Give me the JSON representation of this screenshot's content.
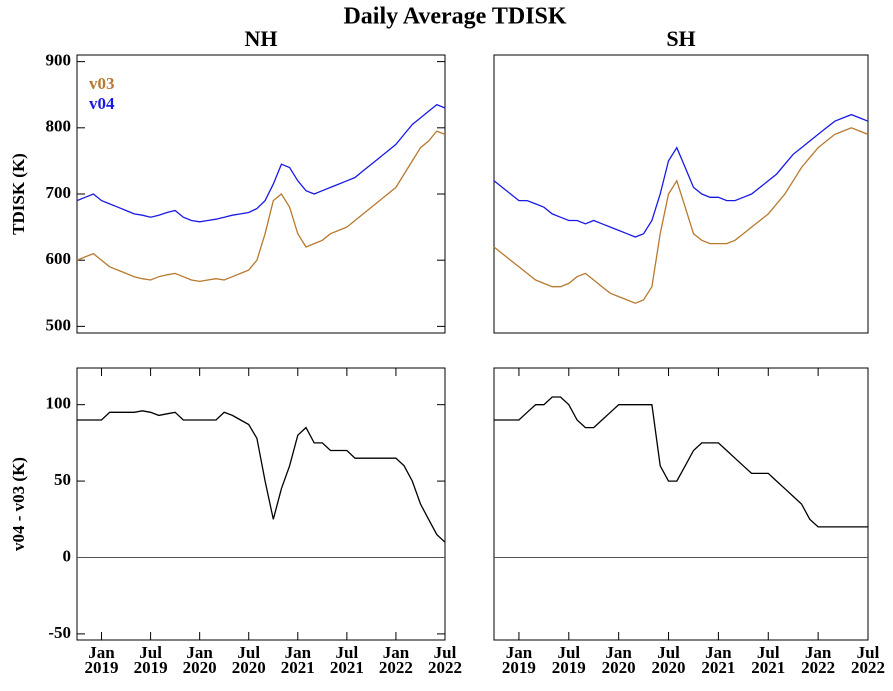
{
  "title": "Daily Average TDISK",
  "chart_data": [
    {
      "type": "line",
      "title": "NH",
      "ylabel": "TDISK (K)",
      "legend": "upper left",
      "x": [
        "2018-10",
        "2018-11",
        "2018-12",
        "2019-01",
        "2019-02",
        "2019-03",
        "2019-04",
        "2019-05",
        "2019-06",
        "2019-07",
        "2019-08",
        "2019-09",
        "2019-10",
        "2019-11",
        "2019-12",
        "2020-01",
        "2020-02",
        "2020-03",
        "2020-04",
        "2020-05",
        "2020-06",
        "2020-07",
        "2020-08",
        "2020-09",
        "2020-10",
        "2020-11",
        "2020-12",
        "2021-01",
        "2021-02",
        "2021-03",
        "2021-04",
        "2021-05",
        "2021-06",
        "2021-07",
        "2021-08",
        "2021-09",
        "2021-10",
        "2021-11",
        "2021-12",
        "2022-01",
        "2022-02",
        "2022-03",
        "2022-04",
        "2022-05",
        "2022-06",
        "2022-07"
      ],
      "xlim": [
        "2018-10",
        "2022-07"
      ],
      "ylim": [
        490,
        910
      ],
      "yticks": [
        500,
        600,
        700,
        800,
        900
      ],
      "series": [
        {
          "name": "v03",
          "color": "#b8792e",
          "values": [
            600,
            605,
            610,
            600,
            590,
            585,
            580,
            575,
            572,
            570,
            575,
            578,
            580,
            575,
            570,
            568,
            570,
            572,
            570,
            575,
            580,
            585,
            600,
            640,
            690,
            700,
            680,
            640,
            620,
            625,
            630,
            640,
            645,
            650,
            660,
            670,
            680,
            690,
            700,
            710,
            730,
            750,
            770,
            780,
            795,
            790
          ]
        },
        {
          "name": "v04",
          "color": "#1a1ae6",
          "values": [
            690,
            695,
            700,
            690,
            685,
            680,
            675,
            670,
            668,
            665,
            668,
            672,
            675,
            665,
            660,
            658,
            660,
            662,
            665,
            668,
            670,
            672,
            678,
            690,
            715,
            745,
            740,
            720,
            705,
            700,
            705,
            710,
            715,
            720,
            725,
            735,
            745,
            755,
            765,
            775,
            790,
            805,
            815,
            825,
            835,
            830
          ]
        }
      ]
    },
    {
      "type": "line",
      "title": "SH",
      "x": [
        "2018-10",
        "2018-11",
        "2018-12",
        "2019-01",
        "2019-02",
        "2019-03",
        "2019-04",
        "2019-05",
        "2019-06",
        "2019-07",
        "2019-08",
        "2019-09",
        "2019-10",
        "2019-11",
        "2019-12",
        "2020-01",
        "2020-02",
        "2020-03",
        "2020-04",
        "2020-05",
        "2020-06",
        "2020-07",
        "2020-08",
        "2020-09",
        "2020-10",
        "2020-11",
        "2020-12",
        "2021-01",
        "2021-02",
        "2021-03",
        "2021-04",
        "2021-05",
        "2021-06",
        "2021-07",
        "2021-08",
        "2021-09",
        "2021-10",
        "2021-11",
        "2021-12",
        "2022-01",
        "2022-02",
        "2022-03",
        "2022-04",
        "2022-05",
        "2022-06",
        "2022-07"
      ],
      "xlim": [
        "2018-10",
        "2022-07"
      ],
      "ylim": [
        490,
        910
      ],
      "series": [
        {
          "color": "#b8792e",
          "values": [
            620,
            610,
            600,
            590,
            580,
            570,
            565,
            560,
            560,
            565,
            575,
            580,
            570,
            560,
            550,
            545,
            540,
            535,
            540,
            560,
            640,
            700,
            720,
            680,
            640,
            630,
            625,
            625,
            625,
            630,
            640,
            650,
            660,
            670,
            685,
            700,
            720,
            740,
            755,
            770,
            780,
            790,
            795,
            800,
            795,
            790
          ]
        },
        {
          "color": "#1a1ae6",
          "values": [
            720,
            710,
            700,
            690,
            690,
            685,
            680,
            670,
            665,
            660,
            660,
            655,
            660,
            655,
            650,
            645,
            640,
            635,
            640,
            660,
            700,
            750,
            770,
            740,
            710,
            700,
            695,
            695,
            690,
            690,
            695,
            700,
            710,
            720,
            730,
            745,
            760,
            770,
            780,
            790,
            800,
            810,
            815,
            820,
            815,
            810
          ]
        }
      ]
    },
    {
      "type": "line",
      "ylabel": "v04 - v03 (K)",
      "color": "#000000",
      "hline": 0,
      "x": [
        "2018-10",
        "2018-11",
        "2018-12",
        "2019-01",
        "2019-02",
        "2019-03",
        "2019-04",
        "2019-05",
        "2019-06",
        "2019-07",
        "2019-08",
        "2019-09",
        "2019-10",
        "2019-11",
        "2019-12",
        "2020-01",
        "2020-02",
        "2020-03",
        "2020-04",
        "2020-05",
        "2020-06",
        "2020-07",
        "2020-08",
        "2020-09",
        "2020-10",
        "2020-11",
        "2020-12",
        "2021-01",
        "2021-02",
        "2021-03",
        "2021-04",
        "2021-05",
        "2021-06",
        "2021-07",
        "2021-08",
        "2021-09",
        "2021-10",
        "2021-11",
        "2021-12",
        "2022-01",
        "2022-02",
        "2022-03",
        "2022-04",
        "2022-05",
        "2022-06",
        "2022-07"
      ],
      "xlim": [
        "2018-10",
        "2022-07"
      ],
      "ylim": [
        -54,
        124
      ],
      "yticks": [
        -50,
        0,
        50,
        100
      ],
      "xticks": [
        {
          "value": "2019-01",
          "label": [
            "Jan",
            "2019"
          ]
        },
        {
          "value": "2019-07",
          "label": [
            "Jul",
            "2019"
          ]
        },
        {
          "value": "2020-01",
          "label": [
            "Jan",
            "2020"
          ]
        },
        {
          "value": "2020-07",
          "label": [
            "Jul",
            "2020"
          ]
        },
        {
          "value": "2021-01",
          "label": [
            "Jan",
            "2021"
          ]
        },
        {
          "value": "2021-07",
          "label": [
            "Jul",
            "2021"
          ]
        },
        {
          "value": "2022-01",
          "label": [
            "Jan",
            "2022"
          ]
        },
        {
          "value": "2022-07",
          "label": [
            "Jul",
            "2022"
          ]
        }
      ],
      "values": [
        90,
        90,
        90,
        90,
        95,
        95,
        95,
        95,
        96,
        95,
        93,
        94,
        95,
        90,
        90,
        90,
        90,
        90,
        95,
        93,
        90,
        87,
        78,
        50,
        25,
        45,
        60,
        80,
        85,
        75,
        75,
        70,
        70,
        70,
        65,
        65,
        65,
        65,
        65,
        65,
        60,
        50,
        35,
        25,
        15,
        10
      ]
    },
    {
      "type": "line",
      "color": "#000000",
      "hline": 0,
      "x": [
        "2018-10",
        "2018-11",
        "2018-12",
        "2019-01",
        "2019-02",
        "2019-03",
        "2019-04",
        "2019-05",
        "2019-06",
        "2019-07",
        "2019-08",
        "2019-09",
        "2019-10",
        "2019-11",
        "2019-12",
        "2020-01",
        "2020-02",
        "2020-03",
        "2020-04",
        "2020-05",
        "2020-06",
        "2020-07",
        "2020-08",
        "2020-09",
        "2020-10",
        "2020-11",
        "2020-12",
        "2021-01",
        "2021-02",
        "2021-03",
        "2021-04",
        "2021-05",
        "2021-06",
        "2021-07",
        "2021-08",
        "2021-09",
        "2021-10",
        "2021-11",
        "2021-12",
        "2022-01",
        "2022-02",
        "2022-03",
        "2022-04",
        "2022-05",
        "2022-06",
        "2022-07"
      ],
      "xlim": [
        "2018-10",
        "2022-07"
      ],
      "ylim": [
        -54,
        124
      ],
      "xticks": [
        {
          "value": "2019-01",
          "label": [
            "Jan",
            "2019"
          ]
        },
        {
          "value": "2019-07",
          "label": [
            "Jul",
            "2019"
          ]
        },
        {
          "value": "2020-01",
          "label": [
            "Jan",
            "2020"
          ]
        },
        {
          "value": "2020-07",
          "label": [
            "Jul",
            "2020"
          ]
        },
        {
          "value": "2021-01",
          "label": [
            "Jan",
            "2021"
          ]
        },
        {
          "value": "2021-07",
          "label": [
            "Jul",
            "2021"
          ]
        },
        {
          "value": "2022-01",
          "label": [
            "Jan",
            "2022"
          ]
        },
        {
          "value": "2022-07",
          "label": [
            "Jul",
            "2022"
          ]
        }
      ],
      "values": [
        90,
        90,
        90,
        90,
        95,
        100,
        100,
        105,
        105,
        100,
        90,
        85,
        85,
        90,
        95,
        100,
        100,
        100,
        100,
        100,
        60,
        50,
        50,
        60,
        70,
        75,
        75,
        75,
        70,
        65,
        60,
        55,
        55,
        55,
        50,
        45,
        40,
        35,
        25,
        20,
        20,
        20,
        20,
        20,
        20,
        20
      ]
    }
  ]
}
